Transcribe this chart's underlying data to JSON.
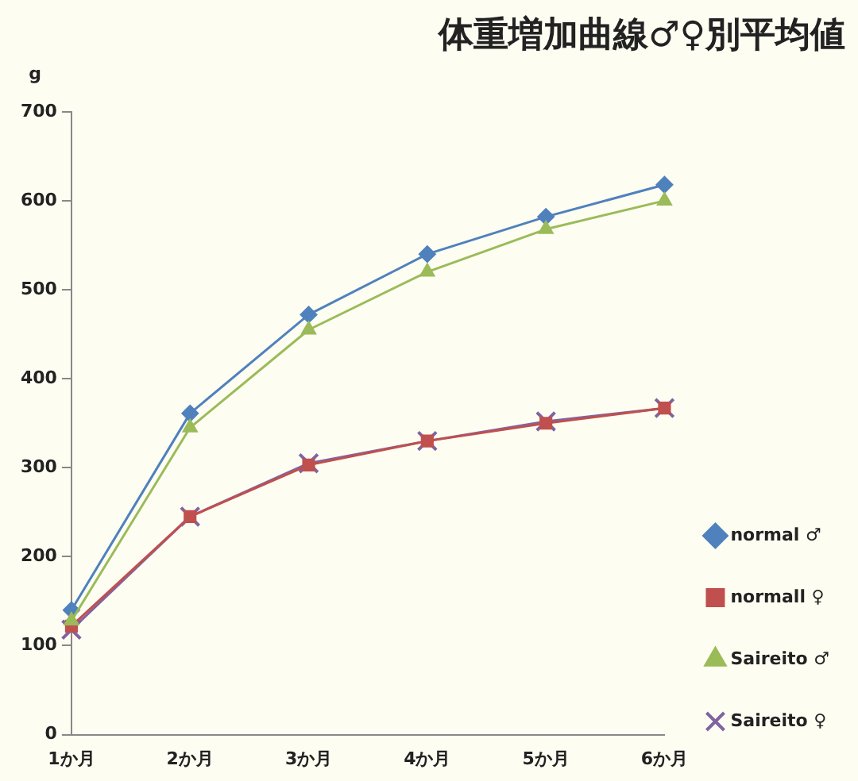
{
  "chart_data": {
    "type": "line",
    "title": "体重増加曲線♂♀別平均値",
    "ylabel": "g",
    "categories": [
      "1か月",
      "2か月",
      "3か月",
      "4か月",
      "5か月",
      "6か月"
    ],
    "series": [
      {
        "name": "normal ♂",
        "color": "#4f81bd",
        "marker": "diamond",
        "values": [
          140,
          361,
          472,
          540,
          582,
          618
        ]
      },
      {
        "name": "normall ♀",
        "color": "#c0504d",
        "marker": "square",
        "values": [
          122,
          245,
          303,
          330,
          350,
          367
        ]
      },
      {
        "name": "Saireito ♂",
        "color": "#9bbb59",
        "marker": "triangle",
        "values": [
          128,
          345,
          455,
          520,
          568,
          600
        ]
      },
      {
        "name": "Saireito ♀",
        "color": "#8064a2",
        "marker": "cross",
        "values": [
          118,
          245,
          305,
          330,
          352,
          367
        ]
      }
    ],
    "ylim": [
      0,
      700
    ],
    "yticks": [
      0,
      100,
      200,
      300,
      400,
      500,
      600,
      700
    ],
    "grid": false,
    "legend": "right"
  }
}
